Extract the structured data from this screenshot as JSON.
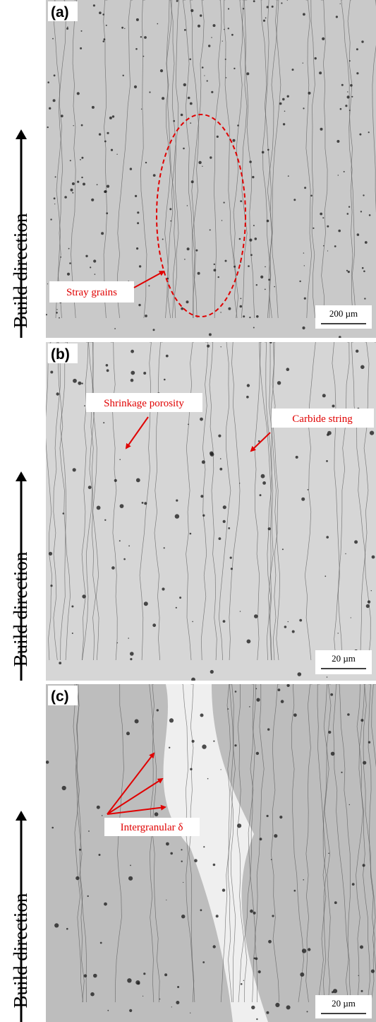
{
  "panels": [
    {
      "label": "(a)",
      "build_direction": "Build direction",
      "annotations": [
        "Stray grains"
      ],
      "scale_bar": "200 µm"
    },
    {
      "label": "(b)",
      "build_direction": "Build direction",
      "annotations": [
        "Shrinkage porosity",
        "Carbide string"
      ],
      "scale_bar": "20 µm"
    },
    {
      "label": "(c)",
      "build_direction": "Build direction",
      "annotations": [
        "Intergranular δ"
      ],
      "scale_bar": "20 µm"
    }
  ]
}
